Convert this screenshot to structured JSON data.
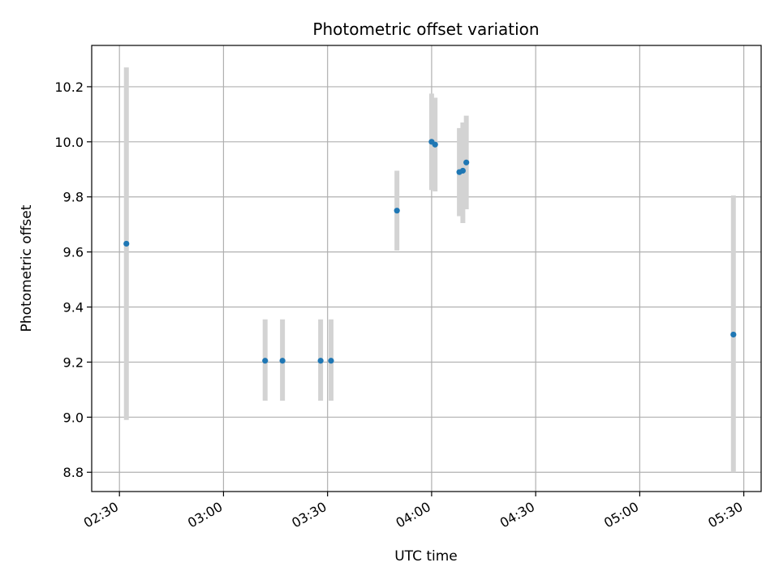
{
  "chart_data": {
    "type": "scatter",
    "title": "Photometric offset variation",
    "xlabel": "UTC time",
    "ylabel": "Photometric offset",
    "x_ticks": [
      "02:30",
      "03:00",
      "03:30",
      "04:00",
      "04:30",
      "05:00",
      "05:30"
    ],
    "y_ticks": [
      "8.8",
      "9.0",
      "9.2",
      "9.4",
      "9.6",
      "9.8",
      "10.0",
      "10.2"
    ],
    "xlim": [
      "02:22",
      "05:35"
    ],
    "ylim": [
      8.73,
      10.35
    ],
    "grid": true,
    "colors": {
      "point": "#1f77b4",
      "errorbar": "#d3d3d3",
      "grid": "#b0b0b0"
    },
    "points": [
      {
        "x": "02:32",
        "y": 9.63,
        "yerr_low": 8.99,
        "yerr_high": 10.27
      },
      {
        "x": "03:12",
        "y": 9.205,
        "yerr_low": 9.06,
        "yerr_high": 9.355
      },
      {
        "x": "03:17",
        "y": 9.205,
        "yerr_low": 9.06,
        "yerr_high": 9.355
      },
      {
        "x": "03:28",
        "y": 9.205,
        "yerr_low": 9.06,
        "yerr_high": 9.355
      },
      {
        "x": "03:31",
        "y": 9.205,
        "yerr_low": 9.06,
        "yerr_high": 9.355
      },
      {
        "x": "03:50",
        "y": 9.75,
        "yerr_low": 9.605,
        "yerr_high": 9.895
      },
      {
        "x": "04:00",
        "y": 10.0,
        "yerr_low": 9.825,
        "yerr_high": 10.175
      },
      {
        "x": "04:01",
        "y": 9.99,
        "yerr_low": 9.82,
        "yerr_high": 10.16
      },
      {
        "x": "04:08",
        "y": 9.89,
        "yerr_low": 9.73,
        "yerr_high": 10.05
      },
      {
        "x": "04:09",
        "y": 9.895,
        "yerr_low": 9.705,
        "yerr_high": 10.07
      },
      {
        "x": "04:10",
        "y": 9.925,
        "yerr_low": 9.755,
        "yerr_high": 10.095
      },
      {
        "x": "05:27",
        "y": 9.3,
        "yerr_low": 8.8,
        "yerr_high": 9.805
      }
    ]
  }
}
